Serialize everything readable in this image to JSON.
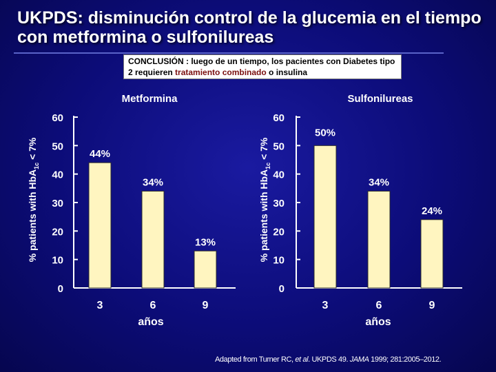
{
  "title": "UKPDS: disminución control de la glucemia en el tiempo con metformina o sulfonilureas",
  "conclusion": {
    "prefix": "CONCLUSIÓN : luego de un tiempo, los pacientes con Diabetes tipo 2 requieren ",
    "highlight": "tratamiento combinado",
    "suffix": " o insulina"
  },
  "colors": {
    "background": "#0c0c78",
    "bar_fill": "#fff5c0",
    "highlight_text": "#7a0f0f"
  },
  "chart_data": [
    {
      "type": "bar",
      "title": "Metformina",
      "categories": [
        "3",
        "6",
        "9"
      ],
      "values": [
        44,
        34,
        13
      ],
      "value_labels": [
        "44%",
        "34%",
        "13%"
      ],
      "xlabel": "años",
      "ylabel_parts": [
        "% patients with HbA",
        "1c",
        " < 7%"
      ],
      "yticks": [
        "0",
        "10",
        "20",
        "30",
        "40",
        "50",
        "60"
      ],
      "ylim": [
        0,
        60
      ],
      "grid": false
    },
    {
      "type": "bar",
      "title": "Sulfonilureas",
      "categories": [
        "3",
        "6",
        "9"
      ],
      "values": [
        50,
        34,
        24
      ],
      "value_labels": [
        "50%",
        "34%",
        "24%"
      ],
      "xlabel": "años",
      "ylabel_parts": [
        "% patients with HbA",
        "1c",
        " < 7%"
      ],
      "yticks": [
        "0",
        "10",
        "20",
        "30",
        "40",
        "50",
        "60"
      ],
      "ylim": [
        0,
        60
      ],
      "grid": false
    }
  ],
  "credit": {
    "prefix": "Adapted from Turner RC, ",
    "etal": "et al",
    "middle": ". UKPDS 49. ",
    "journal": "JAMA",
    "suffix": " 1999; 281:2005–2012."
  }
}
